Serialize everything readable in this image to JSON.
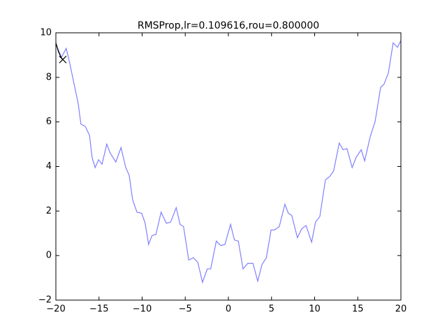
{
  "chart_data": {
    "type": "line",
    "title": "RMSProp,lr=0.109616,rou=0.800000",
    "xlim": [
      -20,
      20
    ],
    "ylim": [
      -2,
      10
    ],
    "xticks": [
      {
        "value": -20,
        "label": "−20"
      },
      {
        "value": -15,
        "label": "−15"
      },
      {
        "value": -10,
        "label": "−10"
      },
      {
        "value": -5,
        "label": "−5"
      },
      0,
      5,
      10,
      15,
      20
    ],
    "yticks": [
      {
        "value": -2,
        "label": "−2"
      },
      0,
      2,
      4,
      6,
      8,
      10
    ],
    "series": [
      {
        "color": "#8080ff",
        "x": [
          -20,
          -19.35,
          -18.8,
          -18.4,
          -18.05,
          -17.4,
          -17.1,
          -16.6,
          -16.1,
          -15.8,
          -15.45,
          -15.05,
          -14.65,
          -14.1,
          -13.7,
          -13.05,
          -12.45,
          -11.9,
          -11.5,
          -11.1,
          -10.6,
          -10.05,
          -9.65,
          -9.25,
          -8.85,
          -8.4,
          -7.8,
          -7.2,
          -6.7,
          -6.05,
          -5.6,
          -5.2,
          -4.6,
          -4.05,
          -3.55,
          -3.0,
          -2.45,
          -2.05,
          -1.4,
          -0.9,
          -0.4,
          0.25,
          0.7,
          1.15,
          1.7,
          2.25,
          2.85,
          3.4,
          3.9,
          4.4,
          4.95,
          5.35,
          5.9,
          6.55,
          6.95,
          7.35,
          8.0,
          8.5,
          9.0,
          9.65,
          10.1,
          10.6,
          11.25,
          11.75,
          12.2,
          12.85,
          13.3,
          13.75,
          14.35,
          14.8,
          15.4,
          15.8,
          16.45,
          17.0,
          17.65,
          18.05,
          18.55,
          19.1,
          19.6,
          20
        ],
        "values": [
          9.5,
          8.9,
          9.3,
          8.65,
          8.0,
          6.8,
          5.9,
          5.8,
          5.4,
          4.4,
          3.95,
          4.3,
          4.1,
          5.0,
          4.6,
          4.2,
          4.85,
          3.95,
          3.6,
          2.5,
          1.95,
          1.9,
          1.45,
          0.5,
          0.9,
          0.95,
          1.95,
          1.45,
          1.5,
          2.15,
          1.4,
          1.3,
          -0.2,
          -0.1,
          -0.3,
          -1.2,
          -0.6,
          -0.6,
          0.65,
          0.45,
          0.5,
          1.4,
          0.7,
          0.65,
          -0.6,
          -0.35,
          -0.35,
          -1.15,
          -0.4,
          -0.1,
          1.15,
          1.15,
          1.3,
          2.3,
          1.9,
          1.8,
          0.8,
          1.2,
          1.35,
          0.6,
          1.5,
          1.75,
          3.4,
          3.55,
          3.8,
          5.05,
          4.75,
          4.8,
          3.95,
          4.4,
          4.75,
          4.25,
          5.35,
          6.0,
          7.55,
          7.7,
          8.2,
          9.55,
          9.35,
          9.65
        ]
      },
      {
        "color": "#000000",
        "x": [
          -20,
          -19.7,
          -19.4,
          -19.2
        ],
        "values": [
          9.55,
          9.15,
          8.9,
          8.8
        ],
        "end_marker": "x"
      }
    ]
  }
}
